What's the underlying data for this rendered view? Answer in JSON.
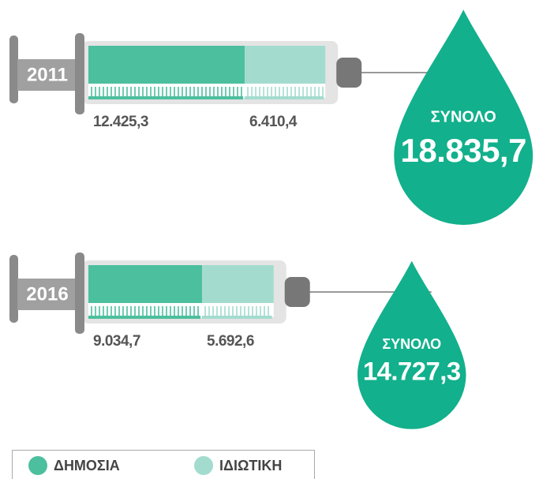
{
  "chart_data": {
    "type": "syringe-bar",
    "categories": [
      "2011",
      "2016"
    ],
    "series": [
      {
        "name": "ΔΗΜΟΣΙΑ",
        "color": "#4cbf9e",
        "values": [
          12425.3,
          9034.7
        ],
        "value_labels": [
          "12.425,3",
          "9.034,7"
        ]
      },
      {
        "name": "ΙΔΙΩΤΙΚΗ",
        "color": "#a3dccf",
        "values": [
          6410.4,
          5692.6
        ],
        "value_labels": [
          "6.410,4",
          "5.692,6"
        ]
      }
    ],
    "total_label": "ΣΥΝΟΛΟ",
    "totals": [
      18835.7,
      14727.3
    ],
    "total_value_labels": [
      "18.835,7",
      "14.727,3"
    ],
    "total_color": "#12b08c"
  }
}
